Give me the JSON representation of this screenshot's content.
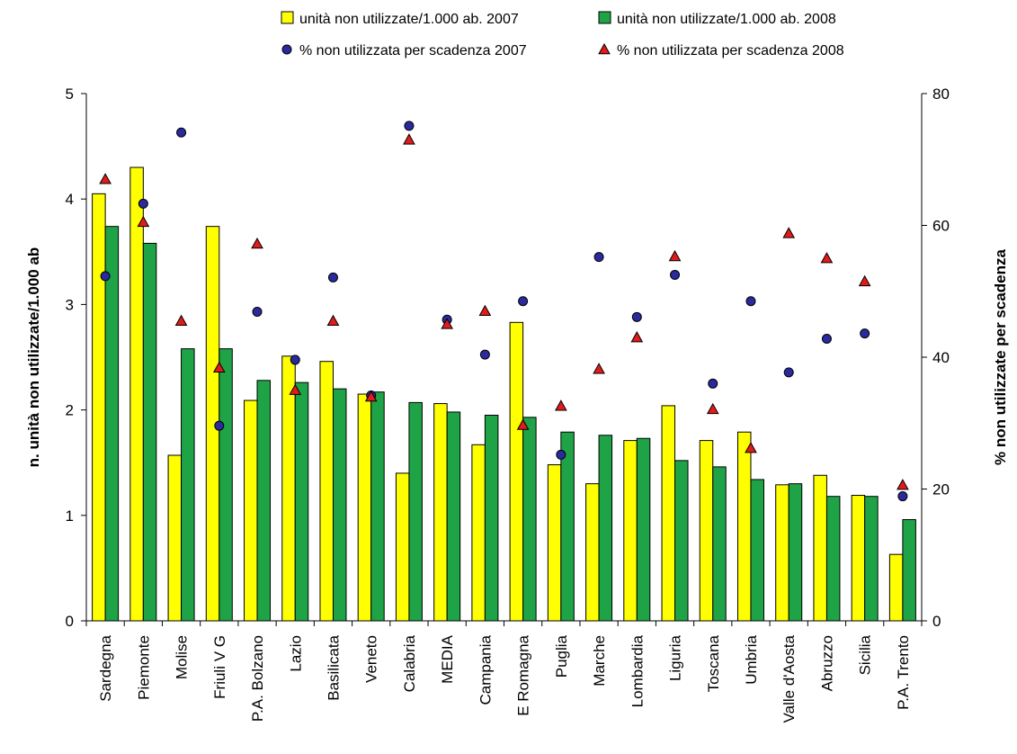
{
  "chart_data": {
    "type": "bar",
    "categories": [
      "Sardegna",
      "Piemonte",
      "Molise",
      "Friuli V G",
      "P.A. Bolzano",
      "Lazio",
      "Basilicata",
      "Veneto",
      "Calabria",
      "MEDIA",
      "Campania",
      "E Romagna",
      "Puglia",
      "Marche",
      "Lombardia",
      "Liguria",
      "Toscana",
      "Umbria",
      "Valle d'Aosta",
      "Abruzzo",
      "Sicilia",
      "P.A. Trento"
    ],
    "series": [
      {
        "name": "unità non utilizzate/1.000 ab. 2007",
        "type": "bar",
        "axis": "left",
        "color": "#ffff00",
        "values": [
          4.05,
          4.3,
          1.57,
          3.74,
          2.09,
          2.51,
          2.46,
          2.15,
          1.4,
          2.06,
          1.67,
          2.83,
          1.48,
          1.3,
          1.71,
          2.04,
          1.71,
          1.79,
          1.29,
          1.38,
          1.19,
          0.63
        ]
      },
      {
        "name": "unità non utilizzate/1.000 ab. 2008",
        "type": "bar",
        "axis": "left",
        "color": "#1fa347",
        "values": [
          3.74,
          3.58,
          2.58,
          2.58,
          2.28,
          2.26,
          2.2,
          2.17,
          2.07,
          1.98,
          1.95,
          1.93,
          1.79,
          1.76,
          1.73,
          1.52,
          1.46,
          1.34,
          1.3,
          1.18,
          1.18,
          0.96
        ]
      },
      {
        "name": "% non utilizzata per scadenza 2007",
        "type": "scatter",
        "axis": "right",
        "color": "#2a2a9e",
        "marker": "circle",
        "values": [
          52.3,
          63.3,
          74.1,
          29.6,
          46.9,
          39.6,
          52.1,
          34.2,
          75.1,
          45.7,
          40.4,
          48.5,
          25.2,
          55.2,
          46.1,
          52.5,
          36.0,
          48.5,
          37.7,
          42.8,
          43.6,
          18.9
        ]
      },
      {
        "name": "% non utilizzata per scadenza 2008",
        "type": "scatter",
        "axis": "right",
        "color": "#e01b1b",
        "marker": "triangle",
        "values": [
          67.0,
          60.5,
          45.5,
          38.4,
          57.2,
          35.0,
          45.5,
          34.0,
          73.0,
          45.0,
          47.0,
          29.7,
          32.6,
          38.2,
          43.0,
          55.3,
          32.1,
          26.2,
          58.8,
          55.0,
          51.5,
          20.6
        ]
      }
    ],
    "y_left": {
      "label": "n. unità non utilizzate/1.000 ab",
      "min": 0,
      "max": 5,
      "ticks": [
        0,
        1,
        2,
        3,
        4,
        5
      ]
    },
    "y_right": {
      "label": "% non utilizzate per scadenza",
      "min": 0,
      "max": 80,
      "ticks": [
        0,
        20,
        40,
        60,
        80
      ]
    },
    "grid": false,
    "legend_position": "top"
  }
}
